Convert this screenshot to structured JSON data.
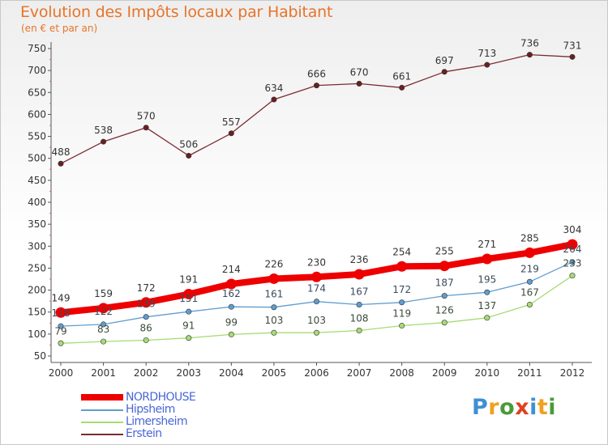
{
  "header": {
    "title": "Evolution des Impôts locaux par Habitant",
    "subtitle": "(en € et par an)"
  },
  "logo": {
    "text": "Proxiti"
  },
  "chart_data": {
    "type": "line",
    "title": "Evolution des Impôts locaux par Habitant",
    "subtitle": "(en € et par an)",
    "xlabel": "",
    "ylabel": "",
    "ylim": [
      50,
      750
    ],
    "y_ticks": [
      50,
      100,
      150,
      200,
      250,
      300,
      350,
      400,
      450,
      500,
      550,
      600,
      650,
      700,
      750
    ],
    "grid": false,
    "legend_position": "bottom-left",
    "categories": [
      "2000",
      "2001",
      "2002",
      "2003",
      "2004",
      "2005",
      "2006",
      "2007",
      "2008",
      "2009",
      "2010",
      "2011",
      "2012"
    ],
    "series": [
      {
        "name": "NORDHOUSE",
        "color": "#ee0000",
        "marker_color": "#ee0000",
        "label_color": "#333333",
        "emphasis": true,
        "values": [
          149,
          159,
          172,
          191,
          214,
          226,
          230,
          236,
          254,
          255,
          271,
          285,
          304
        ]
      },
      {
        "name": "Hipsheim",
        "color": "#5f9dd1",
        "marker_color": "#5f9dd1",
        "label_color": "#3a4a5a",
        "values": [
          118,
          122,
          139,
          151,
          162,
          161,
          174,
          167,
          172,
          187,
          195,
          219,
          264
        ]
      },
      {
        "name": "Limersheim",
        "color": "#a6dc74",
        "marker_color": "#a6dc74",
        "label_color": "#3a4a3a",
        "values": [
          79,
          83,
          86,
          91,
          99,
          103,
          103,
          108,
          119,
          126,
          137,
          167,
          233
        ]
      },
      {
        "name": "Erstein",
        "color": "#7a2c30",
        "marker_color": "#6a1f22",
        "label_color": "#333333",
        "values": [
          488,
          538,
          570,
          506,
          557,
          634,
          666,
          670,
          661,
          697,
          713,
          736,
          731
        ]
      }
    ],
    "legend_text_colors": {
      "NORDHOUSE": "#4a66d8",
      "Hipsheim": "#4a66d8",
      "Limersheim": "#4a66d8",
      "Erstein": "#4a66d8"
    }
  }
}
